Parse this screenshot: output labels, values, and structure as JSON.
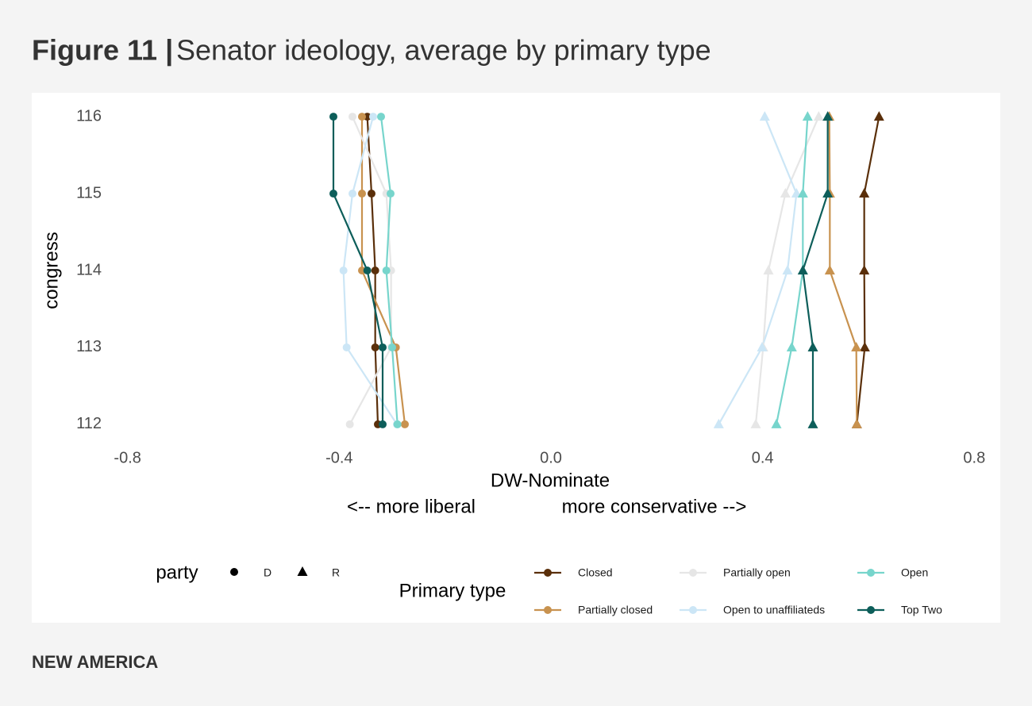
{
  "chart_data": {
    "type": "line",
    "title_label": "Figure 11 |",
    "title": "Senator ideology, average by primary type",
    "xlabel": "DW-Nominate",
    "annotations": [
      "<-- more liberal",
      "more conservative -->"
    ],
    "ylabel": "congress",
    "footer": "NEW AMERICA",
    "xlim": [
      -0.84,
      0.84
    ],
    "xticks": [
      {
        "value": -0.8,
        "label": "-0.8"
      },
      {
        "value": -0.4,
        "label": "-0.4"
      },
      {
        "value": 0,
        "label": "0.0"
      },
      {
        "value": 0.4,
        "label": "0.4"
      },
      {
        "value": 0.8,
        "label": "0.8"
      }
    ],
    "ylim": [
      111.7,
      116.3
    ],
    "yticks": [
      112,
      113,
      114,
      115,
      116
    ],
    "y": [
      112,
      113,
      114,
      115,
      116
    ],
    "party_title": "party",
    "parties": [
      {
        "name": "D",
        "marker": "circle"
      },
      {
        "name": "R",
        "marker": "triangle"
      }
    ],
    "legend_title": "Primary type",
    "series": [
      {
        "name": "Closed",
        "color": "#5a2f0a",
        "values": [
          [
            -0.327,
            -0.332,
            -0.332,
            -0.339,
            -0.347
          ],
          [
            0.578,
            0.593,
            0.592,
            0.592,
            0.62
          ]
        ]
      },
      {
        "name": "Partially closed",
        "color": "#c8924f",
        "values": [
          [
            -0.276,
            -0.293,
            -0.357,
            -0.357,
            -0.357
          ],
          [
            0.578,
            0.577,
            0.527,
            0.527,
            0.526
          ]
        ]
      },
      {
        "name": "Partially open",
        "color": "#e6e6e6",
        "values": [
          [
            -0.38,
            -0.302,
            -0.302,
            -0.311,
            -0.375
          ],
          [
            0.387,
            0.401,
            0.411,
            0.443,
            0.506
          ]
        ]
      },
      {
        "name": "Open to unaffiliateds",
        "color": "#cce6f6",
        "values": [
          [
            -0.291,
            -0.386,
            -0.392,
            -0.375,
            -0.336
          ],
          [
            0.317,
            0.399,
            0.447,
            0.464,
            0.404
          ]
        ]
      },
      {
        "name": "Open",
        "color": "#77d5cc",
        "values": [
          [
            -0.29,
            -0.3,
            -0.311,
            -0.303,
            -0.321
          ],
          [
            0.426,
            0.455,
            0.476,
            0.476,
            0.485
          ]
        ]
      },
      {
        "name": "Top Two",
        "color": "#0d5e5a",
        "values": [
          [
            -0.318,
            -0.318,
            -0.347,
            -0.411,
            -0.411
          ],
          [
            0.495,
            0.495,
            0.476,
            0.523,
            0.523
          ]
        ]
      }
    ]
  }
}
